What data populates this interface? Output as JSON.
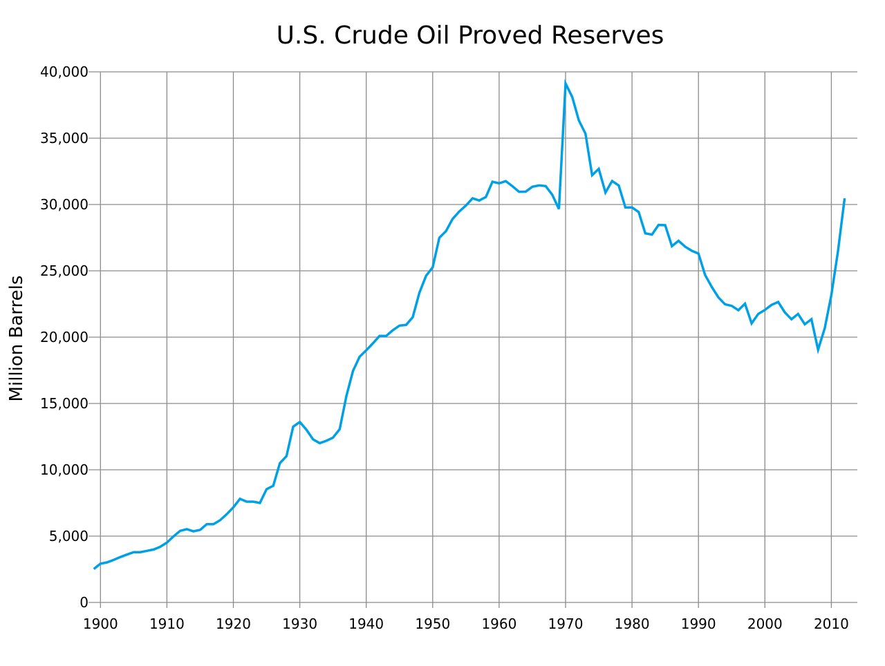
{
  "chart_data": {
    "type": "line",
    "title": "U.S. Crude Oil Proved Reserves",
    "xlabel": "",
    "ylabel": "Million Barrels",
    "xlim": [
      1899,
      2014
    ],
    "ylim": [
      0,
      40000
    ],
    "grid": true,
    "line_color": "#00a0e6",
    "x_ticks": [
      1900,
      1910,
      1920,
      1930,
      1940,
      1950,
      1960,
      1970,
      1980,
      1990,
      2000,
      2010
    ],
    "x_tick_labels": [
      "1900",
      "1910",
      "1920",
      "1930",
      "1940",
      "1950",
      "1960",
      "1970",
      "1980",
      "1990",
      "2000",
      "2010"
    ],
    "y_ticks": [
      0,
      5000,
      10000,
      15000,
      20000,
      25000,
      30000,
      35000,
      40000
    ],
    "y_tick_labels": [
      "0",
      "5,000",
      "10,000",
      "15,000",
      "20,000",
      "25,000",
      "30,000",
      "35,000",
      "40,000"
    ],
    "series": [
      {
        "x": [
          1899,
          1900,
          1901,
          1902,
          1903,
          1904,
          1905,
          1906,
          1907,
          1908,
          1909,
          1910,
          1911,
          1912,
          1913,
          1914,
          1915,
          1916,
          1917,
          1918,
          1919,
          1920,
          1921,
          1922,
          1923,
          1924,
          1925,
          1926,
          1927,
          1928,
          1929,
          1930,
          1931,
          1932,
          1933,
          1934,
          1935,
          1936,
          1937,
          1938,
          1939,
          1940,
          1941,
          1942,
          1943,
          1944,
          1945,
          1946,
          1947,
          1948,
          1949,
          1950,
          1951,
          1952,
          1953,
          1954,
          1955,
          1956,
          1957,
          1958,
          1959,
          1960,
          1961,
          1962,
          1963,
          1964,
          1965,
          1966,
          1967,
          1968,
          1969,
          1970,
          1971,
          1972,
          1973,
          1974,
          1975,
          1976,
          1977,
          1978,
          1979,
          1980,
          1981,
          1982,
          1983,
          1984,
          1985,
          1986,
          1987,
          1988,
          1989,
          1990,
          1991,
          1992,
          1993,
          1994,
          1995,
          1996,
          1997,
          1998,
          1999,
          2000,
          2001,
          2002,
          2003,
          2004,
          2005,
          2006,
          2007,
          2008,
          2009,
          2010,
          2011,
          2012
        ],
        "y": [
          2520,
          2920,
          3020,
          3210,
          3420,
          3610,
          3790,
          3790,
          3890,
          3990,
          4200,
          4510,
          4980,
          5400,
          5520,
          5360,
          5470,
          5900,
          5900,
          6200,
          6650,
          7170,
          7810,
          7600,
          7600,
          7500,
          8540,
          8790,
          10500,
          11030,
          13250,
          13600,
          13020,
          12290,
          12010,
          12190,
          12420,
          13060,
          15540,
          17450,
          18520,
          19010,
          19530,
          20090,
          20090,
          20520,
          20870,
          20920,
          21510,
          23350,
          24620,
          25260,
          27490,
          27990,
          28910,
          29470,
          29920,
          30470,
          30300,
          30560,
          31720,
          31600,
          31760,
          31380,
          30960,
          30970,
          31340,
          31440,
          31390,
          30730,
          29660,
          39120,
          38110,
          36340,
          35340,
          32210,
          32690,
          30900,
          31770,
          31430,
          29780,
          29780,
          29430,
          27830,
          27730,
          28460,
          28440,
          26860,
          27260,
          26820,
          26510,
          26300,
          24690,
          23790,
          23000,
          22480,
          22360,
          22030,
          22520,
          21040,
          21750,
          22050,
          22430,
          22650,
          21870,
          21350,
          21750,
          20970,
          21350,
          19050,
          20660,
          23170,
          26480,
          30470
        ]
      }
    ]
  }
}
